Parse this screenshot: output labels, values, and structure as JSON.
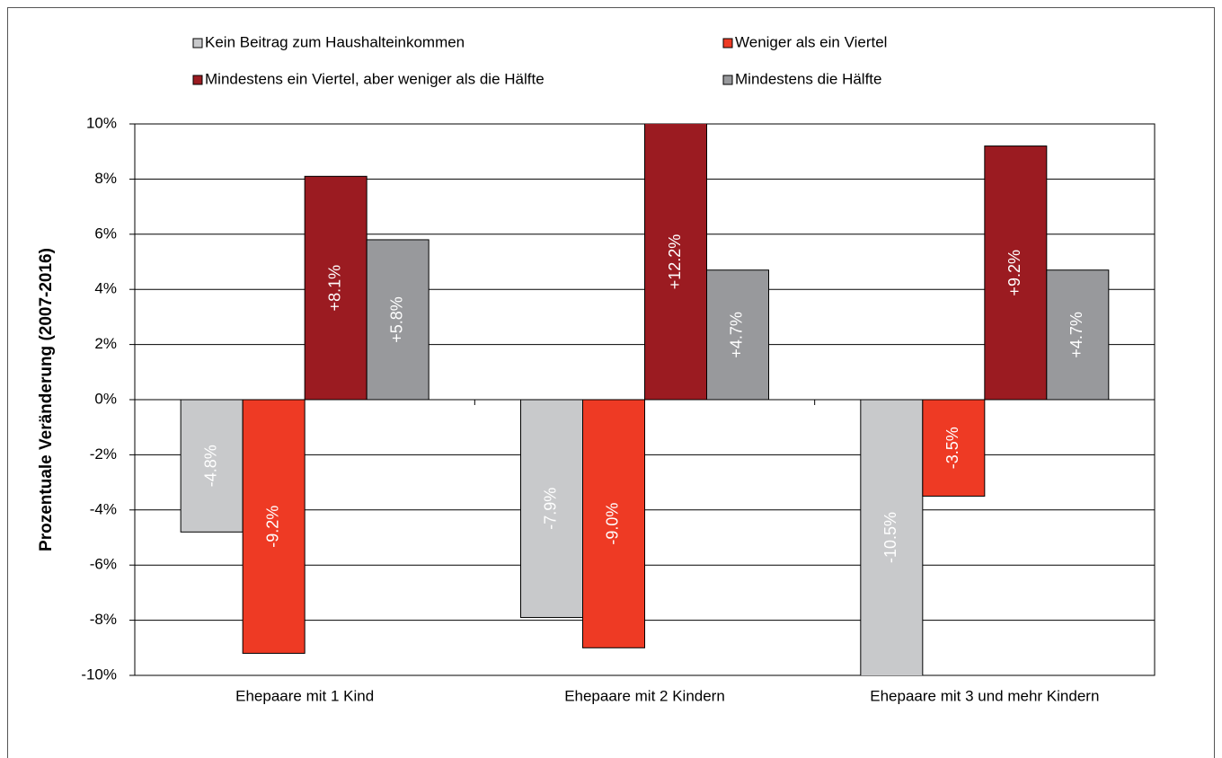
{
  "chart_data": {
    "type": "bar",
    "y_label": "Prozentuale Veränderung (2007-2016)",
    "categories": [
      "Ehepaare mit 1 Kind",
      "Ehepaare mit 2 Kindern",
      "Ehepaare mit 3 und mehr Kindern"
    ],
    "series": [
      {
        "name": "Kein Beitrag zum Haushalteinkommen",
        "color": "#c8c9cb",
        "values": [
          -4.8,
          -7.9,
          -10.5
        ],
        "value_labels": [
          "-4.8%",
          "-7.9%",
          "-10.5%"
        ]
      },
      {
        "name": "Weniger als ein Viertel",
        "color": "#ee3a24",
        "values": [
          -9.2,
          -9.0,
          -3.5
        ],
        "value_labels": [
          "-9.2%",
          "-9.0%",
          "-3.5%"
        ]
      },
      {
        "name": "Mindestens ein Viertel, aber weniger als die Hälfte",
        "color": "#9b1b21",
        "values": [
          8.1,
          12.2,
          9.2
        ],
        "value_labels": [
          "+8.1%",
          "+12.2%",
          "+9.2%"
        ]
      },
      {
        "name": "Mindestens die Hälfte",
        "color": "#98999c",
        "values": [
          5.8,
          4.7,
          4.7
        ],
        "value_labels": [
          "+5.8%",
          "+4.7%",
          "+4.7%"
        ]
      }
    ],
    "ylim": [
      -10,
      10
    ],
    "yticks": [
      {
        "value": -10,
        "label": "-10%"
      },
      {
        "value": -8,
        "label": "-8%"
      },
      {
        "value": -6,
        "label": "-6%"
      },
      {
        "value": -4,
        "label": "-4%"
      },
      {
        "value": -2,
        "label": "-2%"
      },
      {
        "value": 0,
        "label": "0%"
      },
      {
        "value": 2,
        "label": "2%"
      },
      {
        "value": 4,
        "label": "4%"
      },
      {
        "value": 6,
        "label": "6%"
      },
      {
        "value": 8,
        "label": "8%"
      },
      {
        "value": 10,
        "label": "10%"
      }
    ],
    "grid": true,
    "legend": "top"
  }
}
